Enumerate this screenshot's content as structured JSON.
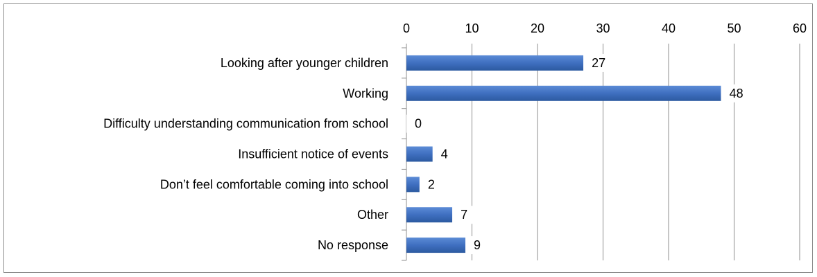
{
  "chart_data": {
    "type": "bar",
    "orientation": "horizontal",
    "categories": [
      "Looking after younger children",
      "Working",
      "Difficulty understanding communication from school",
      "Insufficient notice of events",
      "Don’t feel comfortable coming into school",
      "Other",
      "No response"
    ],
    "values": [
      27,
      48,
      0,
      4,
      2,
      7,
      9
    ],
    "data_labels": [
      "27",
      "48",
      "0",
      "4",
      "2",
      "7",
      "9"
    ],
    "xlim": [
      0,
      60
    ],
    "x_ticks": [
      0,
      10,
      20,
      30,
      40,
      50,
      60
    ],
    "x_tick_labels": [
      "0",
      "10",
      "20",
      "30",
      "40",
      "50",
      "60"
    ],
    "x_axis_position": "top",
    "grid": "vertical",
    "legend": "none",
    "bar_color": "#4472c4"
  }
}
